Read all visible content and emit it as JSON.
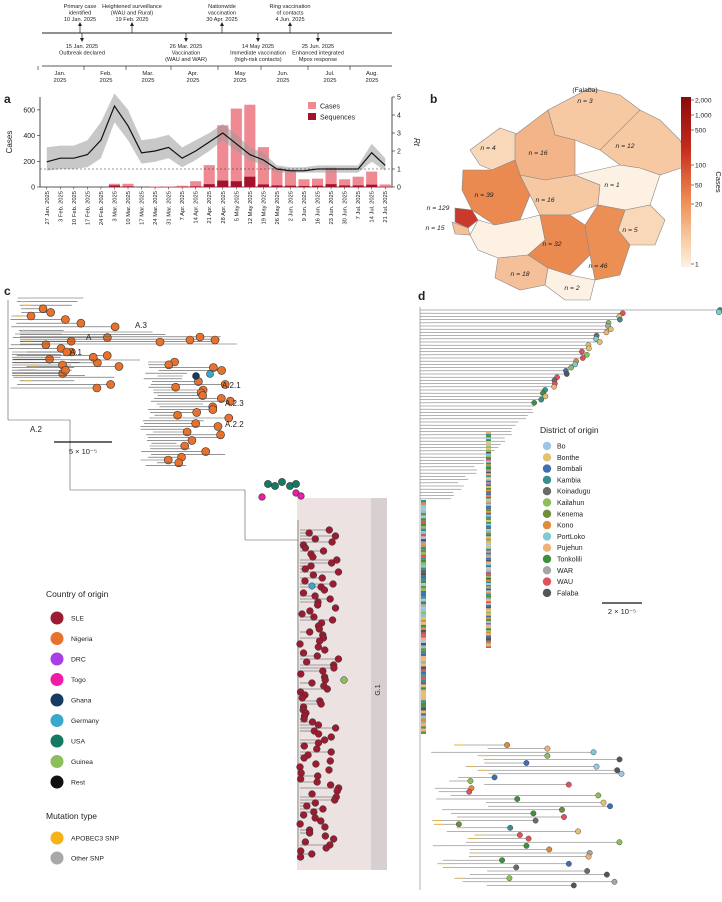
{
  "timeline": {
    "events_top": [
      {
        "date": "10 Jan. 2025",
        "text": "Primary case identified"
      },
      {
        "date": "19 Feb. 2025",
        "text": "Heightened surveillance (WAU and Rural)"
      },
      {
        "date": "30 Apr. 2025",
        "text": "Nationwide vaccination"
      },
      {
        "date": "4 Jun. 2025",
        "text": "Ring vaccination of contacts"
      }
    ],
    "events_bottom": [
      {
        "date": "15 Jan. 2025",
        "text": "Outbreak declared"
      },
      {
        "date": "26 Mar. 2025",
        "text": "Vaccination (WAU and WAR)"
      },
      {
        "date": "14 May 2025",
        "text": "Immediate vaccination (high-risk contacts)"
      },
      {
        "date": "25 Jun. 2025",
        "text": "Enhanced integrated Mpox response"
      }
    ],
    "months": [
      "Jan. 2025",
      "Feb. 2025",
      "Mar. 2025",
      "Apr. 2025",
      "May 2025",
      "Jun. 2025",
      "Jul. 2025",
      "Aug. 2025"
    ]
  },
  "panels": {
    "a": "a",
    "b": "b",
    "c": "c",
    "d": "d"
  },
  "chart_data": [
    {
      "type": "bar",
      "panel": "a",
      "categories": [
        "27 Jan. 2025",
        "3 Feb. 2025",
        "10 Feb. 2025",
        "17 Feb. 2025",
        "24 Feb. 2025",
        "3 Mar. 2025",
        "10 Mar. 2025",
        "17 Mar. 2025",
        "24 Mar. 2025",
        "31 Mar. 2025",
        "7 Apr. 2025",
        "14 Apr. 2025",
        "21 Apr. 2025",
        "28 Apr. 2025",
        "5 May 2025",
        "12 May 2025",
        "19 May 2025",
        "26 May 2025",
        "2 Jun. 2025",
        "9 Jun. 2025",
        "16 Jun. 2025",
        "23 Jun. 2025",
        "30 Jun. 2025",
        "7 Jul. 2025",
        "14 Jul. 2025",
        "21 Jul. 2025"
      ],
      "series": [
        {
          "name": "Cases",
          "values": [
            0,
            0,
            0,
            0,
            0,
            25,
            25,
            0,
            5,
            5,
            10,
            45,
            170,
            480,
            610,
            640,
            310,
            150,
            135,
            60,
            65,
            150,
            60,
            80,
            120,
            20
          ]
        },
        {
          "name": "Sequences",
          "values": [
            0,
            0,
            0,
            0,
            0,
            12,
            5,
            0,
            0,
            0,
            2,
            5,
            22,
            50,
            45,
            80,
            20,
            12,
            10,
            8,
            10,
            22,
            12,
            12,
            18,
            2
          ]
        }
      ],
      "rt": [
        1.4,
        1.6,
        1.6,
        1.8,
        2.6,
        4.5,
        3.4,
        1.9,
        2.0,
        2.2,
        1.6,
        2.0,
        2.5,
        3.0,
        2.4,
        1.8,
        1.5,
        1.0,
        0.9,
        0.9,
        1.0,
        1.0,
        1.0,
        1.0,
        1.9,
        1.2
      ],
      "rt_low": [
        0.9,
        1.0,
        1.0,
        1.1,
        1.6,
        3.6,
        2.6,
        1.3,
        1.4,
        1.6,
        1.1,
        1.5,
        2.0,
        2.6,
        2.0,
        1.5,
        1.2,
        0.8,
        0.8,
        0.8,
        0.8,
        0.8,
        0.8,
        0.8,
        1.4,
        0.9
      ],
      "rt_high": [
        2.2,
        2.3,
        2.3,
        2.6,
        3.6,
        5.2,
        4.3,
        2.6,
        2.7,
        2.9,
        2.2,
        2.6,
        3.0,
        3.5,
        2.9,
        2.2,
        1.9,
        1.2,
        1.1,
        1.1,
        1.2,
        1.2,
        1.2,
        1.2,
        2.4,
        1.6
      ],
      "ylabel": "Cases",
      "y2label": "Rt",
      "ylim": [
        0,
        700
      ],
      "y2lim": [
        0,
        5
      ],
      "yticks": [
        0,
        200,
        400,
        600
      ],
      "y2ticks": [
        0,
        1,
        2,
        3,
        4,
        5
      ],
      "legend": "top-right"
    },
    {
      "type": "map",
      "panel": "b",
      "districts": [
        {
          "label": "(Falaba)",
          "value": "n = 3"
        },
        {
          "label": "",
          "value": "n = 12"
        },
        {
          "label": "",
          "value": "n = 4"
        },
        {
          "label": "",
          "value": "n = 16"
        },
        {
          "label": "",
          "value": "n = 39"
        },
        {
          "label": "",
          "value": "n = 16"
        },
        {
          "label": "",
          "value": "n = 1"
        },
        {
          "label": "",
          "value": "n = 129"
        },
        {
          "label": "",
          "value": "n = 15"
        },
        {
          "label": "",
          "value": "n = 32"
        },
        {
          "label": "",
          "value": "n = 5"
        },
        {
          "label": "",
          "value": "n = 46"
        },
        {
          "label": "",
          "value": "n = 18"
        },
        {
          "label": "",
          "value": "n = 2"
        }
      ],
      "colorbar_ticks": [
        "2,000",
        "1,000",
        "500",
        "100",
        "50",
        "20",
        "1"
      ],
      "colorbar_label": "Cases",
      "colors": {
        "low": "#fdf1e4",
        "high": "#8b0a0a"
      }
    }
  ],
  "tree_c": {
    "clades": [
      "A",
      "A.3",
      "A.1",
      "A.2",
      "A.2.1",
      "A.2.3",
      "A.2.2",
      "G.1"
    ],
    "scale": "5 × 10⁻⁵",
    "country_legend_title": "Country of origin",
    "countries": [
      {
        "name": "SLE",
        "color": "#9b1b30"
      },
      {
        "name": "Nigeria",
        "color": "#e8712c"
      },
      {
        "name": "DRC",
        "color": "#a83ee6"
      },
      {
        "name": "Togo",
        "color": "#f01ba7"
      },
      {
        "name": "Ghana",
        "color": "#173a63"
      },
      {
        "name": "Germany",
        "color": "#38a8cc"
      },
      {
        "name": "USA",
        "color": "#147a63"
      },
      {
        "name": "Guinea",
        "color": "#8cbf5a"
      },
      {
        "name": "Rest",
        "color": "#111111"
      }
    ],
    "mutation_legend_title": "Mutation type",
    "mutations": [
      {
        "name": "APOBEC3 SNP",
        "color": "#f7b316"
      },
      {
        "name": "Other SNP",
        "color": "#a9a9a9"
      }
    ]
  },
  "tree_d": {
    "legend_title": "District of origin",
    "districts": [
      {
        "name": "Bo",
        "color": "#9fc5e8"
      },
      {
        "name": "Bonthe",
        "color": "#e3c16f"
      },
      {
        "name": "Bombali",
        "color": "#3e6fb0"
      },
      {
        "name": "Kambia",
        "color": "#3a8f8c"
      },
      {
        "name": "Koinadugu",
        "color": "#6b6b6b"
      },
      {
        "name": "Kailahun",
        "color": "#8cbf5a"
      },
      {
        "name": "Kenema",
        "color": "#6e8e3a"
      },
      {
        "name": "Kono",
        "color": "#e08a3c"
      },
      {
        "name": "PortLoko",
        "color": "#7fc9d6"
      },
      {
        "name": "Pujehun",
        "color": "#f0b27a"
      },
      {
        "name": "Tonkolili",
        "color": "#3f8f3f"
      },
      {
        "name": "WAR",
        "color": "#a6a6a6"
      },
      {
        "name": "WAU",
        "color": "#e0525a"
      },
      {
        "name": "Falaba",
        "color": "#555555"
      }
    ],
    "scale": "2 × 10⁻⁵"
  }
}
